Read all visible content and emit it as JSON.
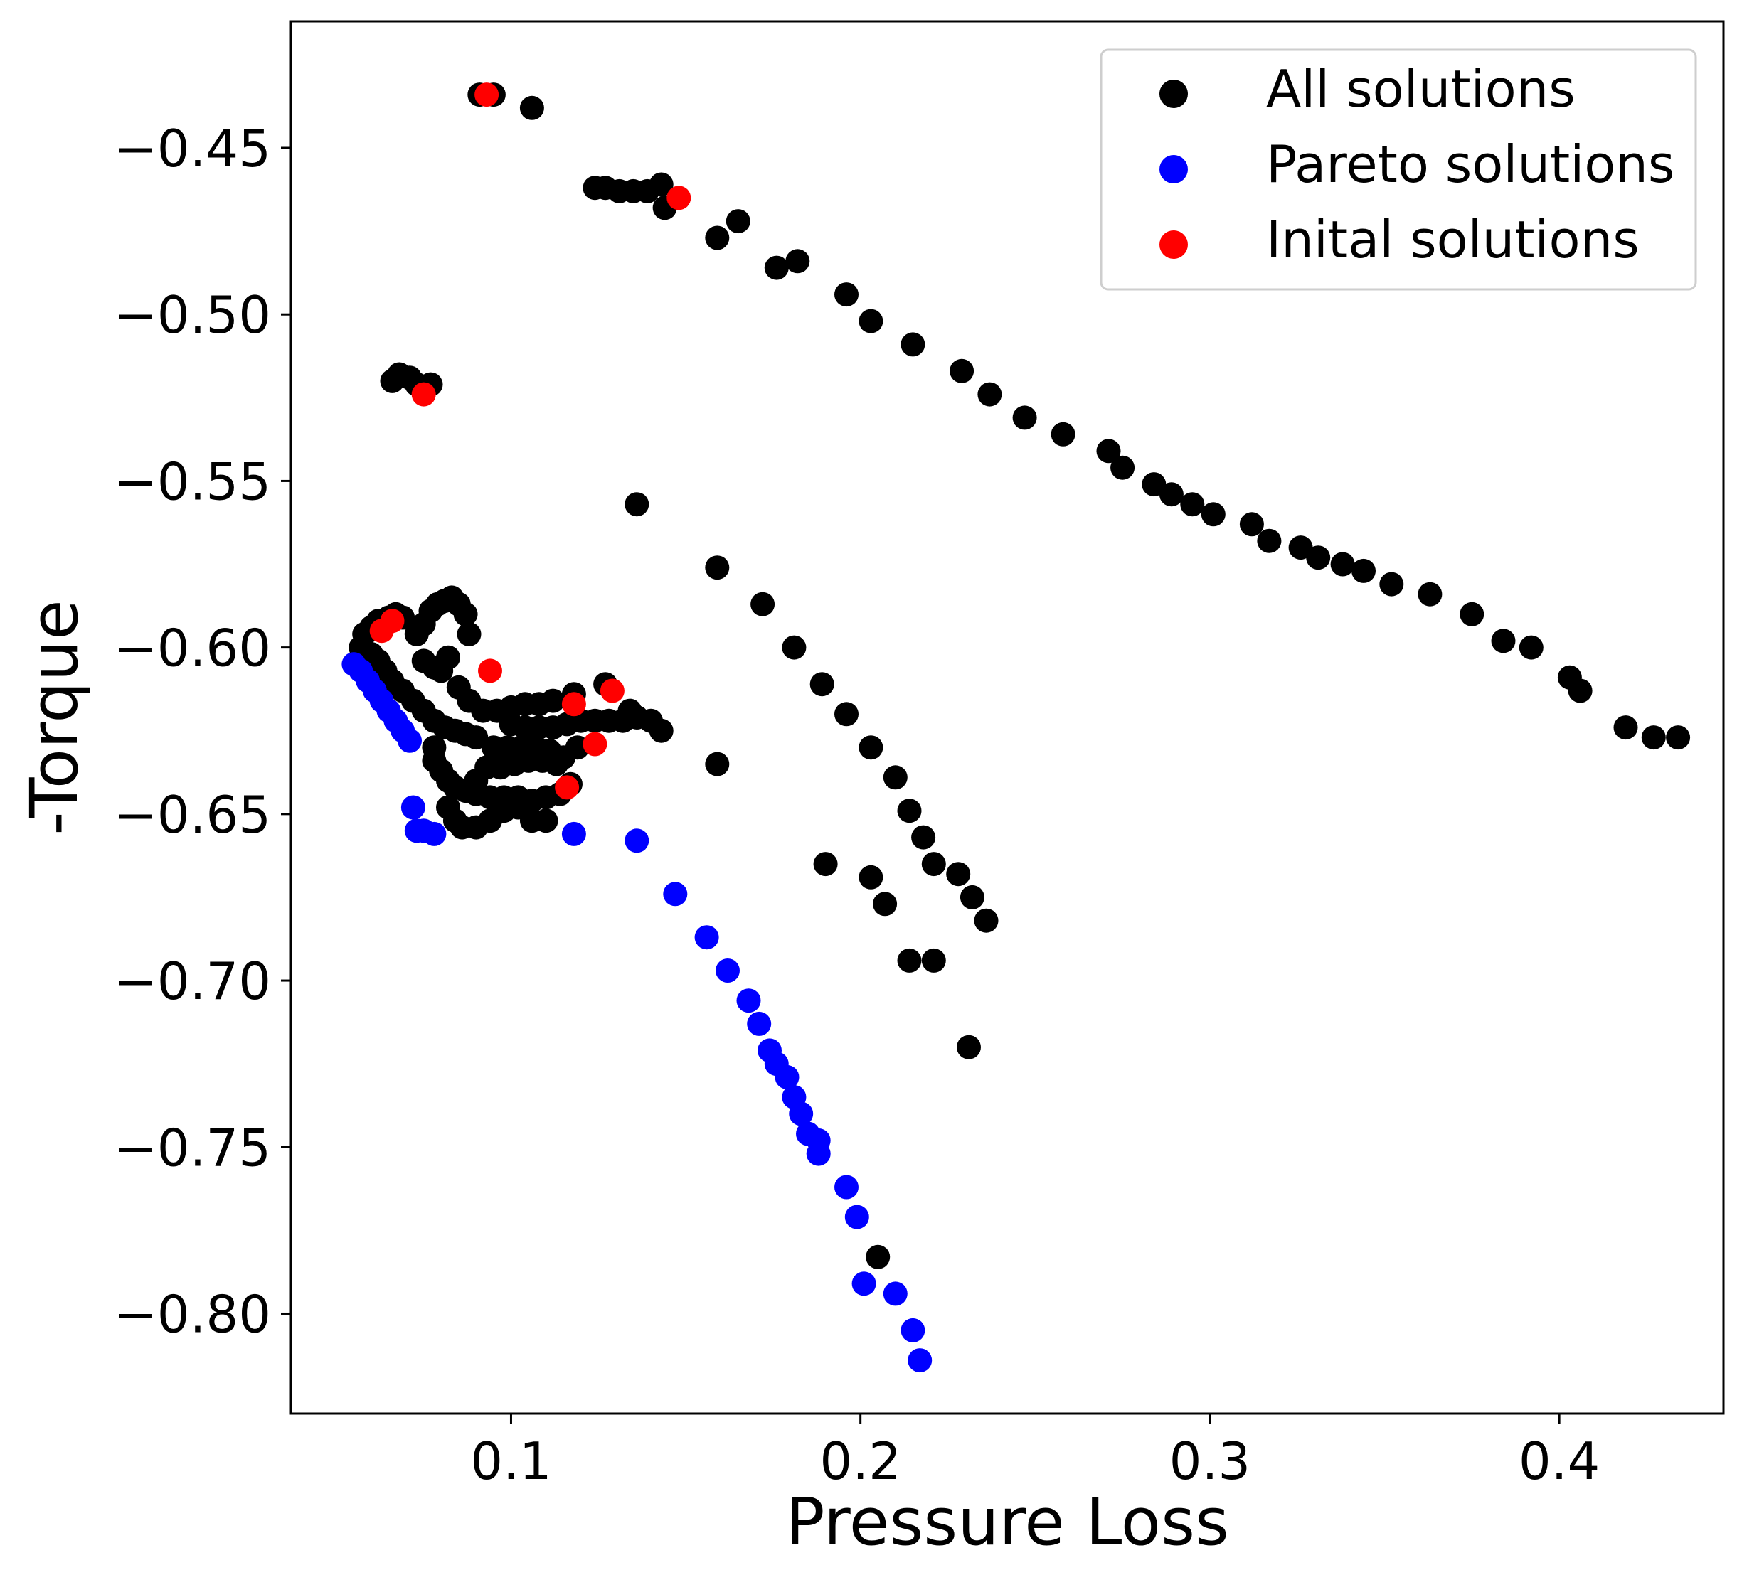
{
  "chart_data": {
    "type": "scatter",
    "title": "",
    "xlabel": "Pressure Loss",
    "ylabel": "-Torque",
    "xlim": [
      0.037,
      0.447
    ],
    "ylim": [
      -0.83,
      -0.412
    ],
    "x_ticks": [
      0.1,
      0.2,
      0.3,
      0.4
    ],
    "x_tick_labels": [
      "0.1",
      "0.2",
      "0.3",
      "0.4"
    ],
    "y_ticks": [
      -0.45,
      -0.5,
      -0.55,
      -0.6,
      -0.65,
      -0.7,
      -0.75,
      -0.8
    ],
    "y_tick_labels": [
      "−0.45",
      "−0.50",
      "−0.55",
      "−0.60",
      "−0.65",
      "−0.70",
      "−0.75",
      "−0.80"
    ],
    "grid": false,
    "legend_position": "top-right",
    "series": [
      {
        "name": "All solutions",
        "color": "#000000",
        "points": [
          [
            0.091,
            -0.434
          ],
          [
            0.095,
            -0.434
          ],
          [
            0.106,
            -0.438
          ],
          [
            0.124,
            -0.462
          ],
          [
            0.127,
            -0.462
          ],
          [
            0.131,
            -0.463
          ],
          [
            0.135,
            -0.463
          ],
          [
            0.139,
            -0.463
          ],
          [
            0.143,
            -0.461
          ],
          [
            0.144,
            -0.468
          ],
          [
            0.159,
            -0.477
          ],
          [
            0.165,
            -0.472
          ],
          [
            0.176,
            -0.486
          ],
          [
            0.182,
            -0.484
          ],
          [
            0.196,
            -0.494
          ],
          [
            0.203,
            -0.502
          ],
          [
            0.215,
            -0.509
          ],
          [
            0.229,
            -0.517
          ],
          [
            0.237,
            -0.524
          ],
          [
            0.247,
            -0.531
          ],
          [
            0.258,
            -0.536
          ],
          [
            0.271,
            -0.541
          ],
          [
            0.275,
            -0.546
          ],
          [
            0.284,
            -0.551
          ],
          [
            0.289,
            -0.554
          ],
          [
            0.295,
            -0.557
          ],
          [
            0.301,
            -0.56
          ],
          [
            0.312,
            -0.563
          ],
          [
            0.317,
            -0.568
          ],
          [
            0.326,
            -0.57
          ],
          [
            0.331,
            -0.573
          ],
          [
            0.338,
            -0.575
          ],
          [
            0.344,
            -0.577
          ],
          [
            0.352,
            -0.581
          ],
          [
            0.363,
            -0.584
          ],
          [
            0.375,
            -0.59
          ],
          [
            0.384,
            -0.598
          ],
          [
            0.392,
            -0.6
          ],
          [
            0.403,
            -0.609
          ],
          [
            0.406,
            -0.613
          ],
          [
            0.419,
            -0.624
          ],
          [
            0.427,
            -0.627
          ],
          [
            0.434,
            -0.627
          ],
          [
            0.066,
            -0.52
          ],
          [
            0.068,
            -0.518
          ],
          [
            0.071,
            -0.519
          ],
          [
            0.073,
            -0.521
          ],
          [
            0.077,
            -0.521
          ],
          [
            0.136,
            -0.557
          ],
          [
            0.159,
            -0.576
          ],
          [
            0.172,
            -0.587
          ],
          [
            0.181,
            -0.6
          ],
          [
            0.189,
            -0.611
          ],
          [
            0.196,
            -0.62
          ],
          [
            0.203,
            -0.63
          ],
          [
            0.21,
            -0.639
          ],
          [
            0.214,
            -0.649
          ],
          [
            0.218,
            -0.657
          ],
          [
            0.221,
            -0.665
          ],
          [
            0.228,
            -0.668
          ],
          [
            0.232,
            -0.675
          ],
          [
            0.236,
            -0.682
          ],
          [
            0.159,
            -0.635
          ],
          [
            0.19,
            -0.665
          ],
          [
            0.203,
            -0.669
          ],
          [
            0.207,
            -0.677
          ],
          [
            0.214,
            -0.694
          ],
          [
            0.221,
            -0.694
          ],
          [
            0.231,
            -0.72
          ],
          [
            0.205,
            -0.783
          ],
          [
            0.057,
            -0.6
          ],
          [
            0.058,
            -0.596
          ],
          [
            0.06,
            -0.594
          ],
          [
            0.062,
            -0.592
          ],
          [
            0.065,
            -0.591
          ],
          [
            0.067,
            -0.59
          ],
          [
            0.069,
            -0.591
          ],
          [
            0.058,
            -0.603
          ],
          [
            0.06,
            -0.602
          ],
          [
            0.062,
            -0.604
          ],
          [
            0.064,
            -0.607
          ],
          [
            0.066,
            -0.61
          ],
          [
            0.069,
            -0.613
          ],
          [
            0.072,
            -0.616
          ],
          [
            0.075,
            -0.619
          ],
          [
            0.078,
            -0.622
          ],
          [
            0.081,
            -0.624
          ],
          [
            0.084,
            -0.625
          ],
          [
            0.087,
            -0.626
          ],
          [
            0.09,
            -0.627
          ],
          [
            0.073,
            -0.596
          ],
          [
            0.075,
            -0.593
          ],
          [
            0.077,
            -0.589
          ],
          [
            0.079,
            -0.587
          ],
          [
            0.081,
            -0.586
          ],
          [
            0.083,
            -0.585
          ],
          [
            0.085,
            -0.587
          ],
          [
            0.087,
            -0.59
          ],
          [
            0.088,
            -0.596
          ],
          [
            0.075,
            -0.604
          ],
          [
            0.078,
            -0.606
          ],
          [
            0.08,
            -0.607
          ],
          [
            0.082,
            -0.603
          ],
          [
            0.078,
            -0.63
          ],
          [
            0.078,
            -0.634
          ],
          [
            0.08,
            -0.637
          ],
          [
            0.082,
            -0.64
          ],
          [
            0.084,
            -0.642
          ],
          [
            0.087,
            -0.643
          ],
          [
            0.09,
            -0.644
          ],
          [
            0.094,
            -0.645
          ],
          [
            0.098,
            -0.645
          ],
          [
            0.102,
            -0.645
          ],
          [
            0.106,
            -0.646
          ],
          [
            0.11,
            -0.645
          ],
          [
            0.114,
            -0.644
          ],
          [
            0.117,
            -0.641
          ],
          [
            0.082,
            -0.648
          ],
          [
            0.084,
            -0.652
          ],
          [
            0.086,
            -0.654
          ],
          [
            0.09,
            -0.654
          ],
          [
            0.094,
            -0.652
          ],
          [
            0.098,
            -0.649
          ],
          [
            0.102,
            -0.648
          ],
          [
            0.106,
            -0.652
          ],
          [
            0.11,
            -0.652
          ],
          [
            0.092,
            -0.619
          ],
          [
            0.096,
            -0.619
          ],
          [
            0.1,
            -0.618
          ],
          [
            0.104,
            -0.617
          ],
          [
            0.108,
            -0.617
          ],
          [
            0.112,
            -0.616
          ],
          [
            0.118,
            -0.614
          ],
          [
            0.1,
            -0.623
          ],
          [
            0.104,
            -0.624
          ],
          [
            0.108,
            -0.624
          ],
          [
            0.112,
            -0.624
          ],
          [
            0.116,
            -0.623
          ],
          [
            0.12,
            -0.622
          ],
          [
            0.124,
            -0.622
          ],
          [
            0.128,
            -0.622
          ],
          [
            0.132,
            -0.622
          ],
          [
            0.136,
            -0.621
          ],
          [
            0.14,
            -0.622
          ],
          [
            0.134,
            -0.619
          ],
          [
            0.143,
            -0.625
          ],
          [
            0.095,
            -0.63
          ],
          [
            0.099,
            -0.63
          ],
          [
            0.103,
            -0.63
          ],
          [
            0.107,
            -0.63
          ],
          [
            0.111,
            -0.631
          ],
          [
            0.115,
            -0.633
          ],
          [
            0.119,
            -0.63
          ],
          [
            0.093,
            -0.636
          ],
          [
            0.097,
            -0.636
          ],
          [
            0.101,
            -0.635
          ],
          [
            0.105,
            -0.634
          ],
          [
            0.109,
            -0.634
          ],
          [
            0.113,
            -0.635
          ],
          [
            0.127,
            -0.611
          ],
          [
            0.085,
            -0.612
          ],
          [
            0.088,
            -0.616
          ],
          [
            0.09,
            -0.64
          ]
        ]
      },
      {
        "name": "Pareto solutions",
        "color": "#0000ff",
        "points": [
          [
            0.055,
            -0.605
          ],
          [
            0.057,
            -0.607
          ],
          [
            0.059,
            -0.61
          ],
          [
            0.061,
            -0.613
          ],
          [
            0.063,
            -0.616
          ],
          [
            0.065,
            -0.619
          ],
          [
            0.067,
            -0.622
          ],
          [
            0.069,
            -0.625
          ],
          [
            0.071,
            -0.628
          ],
          [
            0.072,
            -0.648
          ],
          [
            0.073,
            -0.655
          ],
          [
            0.075,
            -0.655
          ],
          [
            0.078,
            -0.656
          ],
          [
            0.118,
            -0.656
          ],
          [
            0.136,
            -0.658
          ],
          [
            0.147,
            -0.674
          ],
          [
            0.156,
            -0.687
          ],
          [
            0.162,
            -0.697
          ],
          [
            0.168,
            -0.706
          ],
          [
            0.171,
            -0.713
          ],
          [
            0.174,
            -0.721
          ],
          [
            0.176,
            -0.725
          ],
          [
            0.179,
            -0.729
          ],
          [
            0.181,
            -0.735
          ],
          [
            0.183,
            -0.74
          ],
          [
            0.185,
            -0.746
          ],
          [
            0.188,
            -0.748
          ],
          [
            0.188,
            -0.752
          ],
          [
            0.196,
            -0.762
          ],
          [
            0.199,
            -0.771
          ],
          [
            0.201,
            -0.791
          ],
          [
            0.21,
            -0.794
          ],
          [
            0.215,
            -0.805
          ],
          [
            0.217,
            -0.814
          ]
        ]
      },
      {
        "name": "Inital solutions",
        "color": "#ff0000",
        "points": [
          [
            0.093,
            -0.434
          ],
          [
            0.148,
            -0.465
          ],
          [
            0.075,
            -0.524
          ],
          [
            0.063,
            -0.595
          ],
          [
            0.066,
            -0.592
          ],
          [
            0.094,
            -0.607
          ],
          [
            0.129,
            -0.613
          ],
          [
            0.118,
            -0.617
          ],
          [
            0.124,
            -0.629
          ],
          [
            0.116,
            -0.642
          ]
        ]
      }
    ]
  }
}
